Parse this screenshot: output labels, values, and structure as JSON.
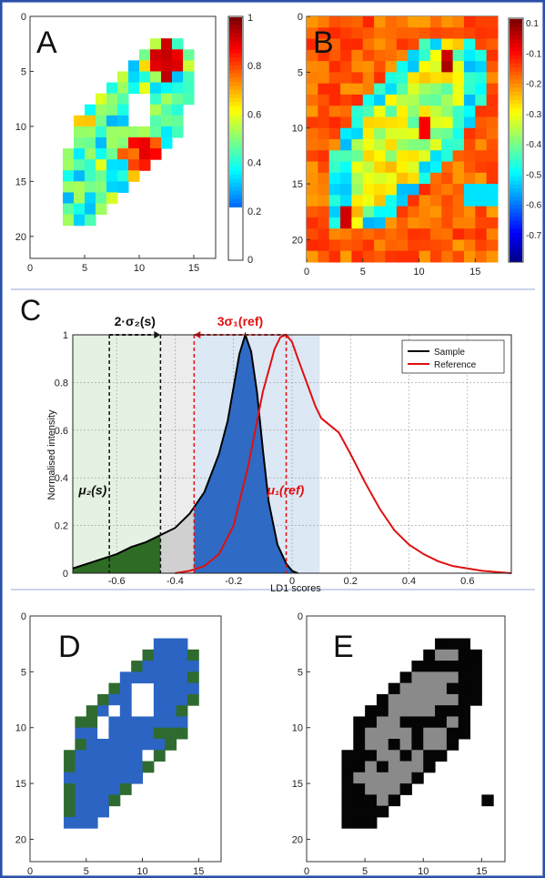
{
  "panels": {
    "A": {
      "letter": "A"
    },
    "B": {
      "letter": "B"
    },
    "C": {
      "letter": "C"
    },
    "D": {
      "letter": "D"
    },
    "E": {
      "letter": "E"
    }
  },
  "map_axes": {
    "x_ticks": [
      "0",
      "5",
      "10",
      "15"
    ],
    "y_ticks": [
      "0",
      "5",
      "10",
      "15",
      "20"
    ]
  },
  "colorbars": {
    "A": {
      "ticks": [
        "1",
        "0.8",
        "0.6",
        "0.4",
        "0.2",
        "0"
      ]
    },
    "B": {
      "ticks": [
        "0.1",
        "-0.1",
        "-0.2",
        "-0.3",
        "-0.4",
        "-0.5",
        "-0.6",
        "-0.7"
      ]
    }
  },
  "chart_data": [
    {
      "panel": "A",
      "type": "heatmap",
      "xlim": [
        0,
        17
      ],
      "ylim": [
        0,
        22
      ],
      "clim": [
        0,
        1
      ],
      "colormap": "jet",
      "shape": [
        "     #####     ",
        "    ######     ",
        "   ######      ",
        "  ######       ",
        "  ##  ###      ",
        "  # # ###      ",
        "  #   ###      "
      ]
    },
    {
      "panel": "B",
      "type": "heatmap",
      "xlim": [
        0,
        17
      ],
      "ylim": [
        0,
        22
      ],
      "clim": [
        -0.75,
        0.1
      ],
      "colormap": "jet"
    },
    {
      "panel": "C",
      "type": "line",
      "xlabel": "LD1 scores",
      "ylabel": "Normalised intensity",
      "xlim": [
        -0.75,
        0.75
      ],
      "ylim": [
        0,
        1
      ],
      "x_ticks": [
        "-0.6",
        "-0.4",
        "-0.2",
        "0",
        "0.2",
        "0.4",
        "0.6"
      ],
      "y_ticks": [
        "0",
        "0.2",
        "0.4",
        "0.6",
        "0.8",
        "1"
      ],
      "grid": true,
      "legend_position": "top-right",
      "series": [
        {
          "name": "Sample",
          "color": "#000000",
          "x": [
            -0.75,
            -0.7,
            -0.65,
            -0.6,
            -0.55,
            -0.5,
            -0.45,
            -0.4,
            -0.35,
            -0.3,
            -0.25,
            -0.22,
            -0.2,
            -0.18,
            -0.16,
            -0.14,
            -0.12,
            -0.1,
            -0.08,
            -0.05,
            -0.02,
            0.0,
            0.02
          ],
          "y": [
            0.02,
            0.04,
            0.06,
            0.08,
            0.11,
            0.13,
            0.16,
            0.19,
            0.25,
            0.34,
            0.5,
            0.64,
            0.78,
            0.92,
            1.0,
            0.93,
            0.76,
            0.52,
            0.3,
            0.12,
            0.04,
            0.01,
            0.0
          ]
        },
        {
          "name": "Reference",
          "color": "#e01010",
          "x": [
            -0.4,
            -0.35,
            -0.3,
            -0.25,
            -0.2,
            -0.15,
            -0.1,
            -0.06,
            -0.04,
            -0.02,
            0.0,
            0.02,
            0.05,
            0.08,
            0.1,
            0.13,
            0.16,
            0.2,
            0.25,
            0.3,
            0.35,
            0.4,
            0.45,
            0.5,
            0.55,
            0.6,
            0.65,
            0.7,
            0.75
          ],
          "y": [
            0.0,
            0.01,
            0.03,
            0.08,
            0.2,
            0.45,
            0.76,
            0.94,
            0.99,
            1.0,
            0.97,
            0.9,
            0.8,
            0.7,
            0.65,
            0.62,
            0.59,
            0.5,
            0.38,
            0.27,
            0.18,
            0.12,
            0.08,
            0.05,
            0.03,
            0.02,
            0.01,
            0.005,
            0.0
          ]
        }
      ],
      "annotations": {
        "sigma2_label": "2·σ₂(s)",
        "sigma1_label": "3σ₁(ref)",
        "mu2_label": "μ₂(s)",
        "mu1_label": "μ₁(ref)",
        "mu2_x": -0.625,
        "mu2_plus_2sigma2_x": -0.45,
        "mu1_x": -0.02,
        "mu1_minus_3sigma1_x": -0.335,
        "green_band": [
          -0.75,
          -0.45
        ],
        "blue_band": [
          -0.335,
          0.095
        ]
      }
    },
    {
      "panel": "D",
      "type": "heatmap",
      "xlim": [
        0,
        17
      ],
      "ylim": [
        0,
        22
      ],
      "classes": [
        "blue",
        "green",
        "white"
      ]
    },
    {
      "panel": "E",
      "type": "heatmap",
      "xlim": [
        0,
        17
      ],
      "ylim": [
        0,
        22
      ],
      "classes": [
        "black",
        "gray"
      ]
    }
  ]
}
